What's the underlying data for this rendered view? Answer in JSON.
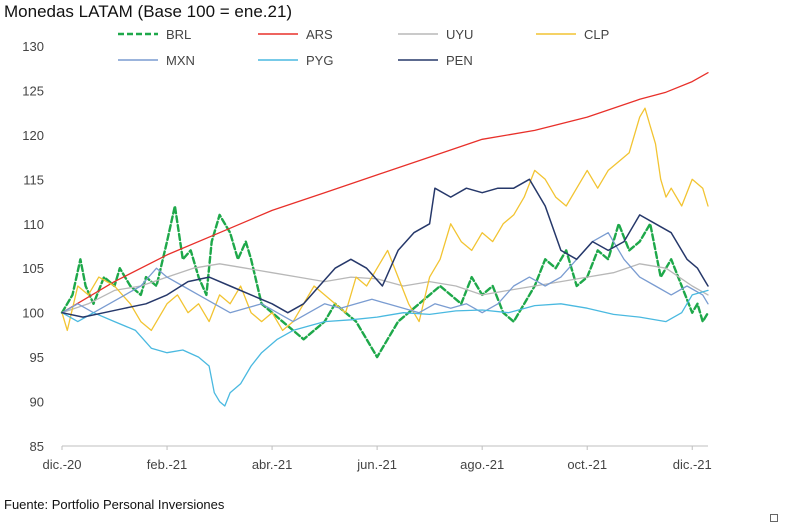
{
  "chart_data": {
    "type": "line",
    "title": "Monedas LATAM (Base 100 = ene.21)",
    "source": "Fuente: Portfolio Personal Inversiones",
    "xlabel": "",
    "ylabel": "",
    "ylim": [
      85,
      130
    ],
    "yticks": [
      85,
      90,
      95,
      100,
      105,
      110,
      115,
      120,
      125,
      130
    ],
    "xlim": [
      0,
      12.3
    ],
    "xticks": [
      {
        "pos": 0,
        "label": "dic.-20"
      },
      {
        "pos": 2,
        "label": "feb.-21"
      },
      {
        "pos": 4,
        "label": "abr.-21"
      },
      {
        "pos": 6,
        "label": "jun.-21"
      },
      {
        "pos": 8,
        "label": "ago.-21"
      },
      {
        "pos": 10,
        "label": "oct.-21"
      },
      {
        "pos": 12,
        "label": "dic.-21"
      }
    ],
    "legend_position": "top",
    "series": [
      {
        "name": "BRL",
        "color": "#1ea84a",
        "dash": true,
        "width": 2.4,
        "x": [
          0,
          0.2,
          0.35,
          0.45,
          0.6,
          0.8,
          1.0,
          1.1,
          1.3,
          1.5,
          1.6,
          1.8,
          2.0,
          2.15,
          2.3,
          2.45,
          2.6,
          2.75,
          2.85,
          3.0,
          3.2,
          3.35,
          3.5,
          3.6,
          3.8,
          4.0,
          4.2,
          4.4,
          4.6,
          4.8,
          5.0,
          5.2,
          5.4,
          5.6,
          5.8,
          6.0,
          6.2,
          6.4,
          6.6,
          6.8,
          7.0,
          7.2,
          7.4,
          7.6,
          7.8,
          8.0,
          8.2,
          8.4,
          8.6,
          8.8,
          9.0,
          9.2,
          9.4,
          9.6,
          9.8,
          10.0,
          10.2,
          10.4,
          10.6,
          10.8,
          11.0,
          11.2,
          11.4,
          11.6,
          11.8,
          12.0,
          12.1,
          12.2,
          12.3
        ],
        "y": [
          100,
          102,
          106,
          103,
          101,
          104,
          103,
          105,
          103,
          102,
          104,
          103,
          108,
          112,
          106,
          107,
          104,
          102,
          108,
          111,
          109,
          106,
          108,
          106,
          101,
          100,
          99,
          98,
          97,
          98,
          99,
          101,
          100,
          99,
          97,
          95,
          97,
          99,
          100,
          101,
          102,
          103,
          102,
          101,
          104,
          102,
          103,
          100,
          99,
          101,
          103,
          106,
          105,
          107,
          103,
          104,
          107,
          106,
          110,
          107,
          108,
          110,
          104,
          106,
          103,
          100,
          101,
          99,
          100
        ]
      },
      {
        "name": "ARS",
        "color": "#e8302a",
        "dash": false,
        "width": 1.3,
        "x": [
          0,
          1,
          2,
          3,
          4,
          5,
          6,
          7,
          8,
          9,
          10,
          11,
          11.5,
          12,
          12.3
        ],
        "y": [
          100,
          103.5,
          106.5,
          109,
          111.5,
          113.5,
          115.5,
          117.5,
          119.5,
          120.5,
          122,
          124,
          124.8,
          126,
          127
        ]
      },
      {
        "name": "UYU",
        "color": "#b8b8b8",
        "dash": false,
        "width": 1.3,
        "x": [
          0,
          0.5,
          1,
          1.5,
          2,
          2.5,
          3,
          3.5,
          4,
          4.5,
          5,
          5.5,
          6,
          6.5,
          7,
          7.5,
          8,
          8.5,
          9,
          9.5,
          10,
          10.5,
          11,
          11.5,
          12,
          12.3
        ],
        "y": [
          100,
          101,
          102.5,
          103,
          104,
          105,
          105.5,
          105,
          104.5,
          104,
          103.5,
          104,
          103.8,
          103,
          103.5,
          103,
          102,
          102.5,
          103,
          103.5,
          104,
          104.5,
          105.5,
          105,
          103,
          102
        ]
      },
      {
        "name": "CLP",
        "color": "#f2c432",
        "dash": false,
        "width": 1.3,
        "x": [
          0,
          0.1,
          0.3,
          0.5,
          0.7,
          1.0,
          1.3,
          1.5,
          1.7,
          2.0,
          2.2,
          2.4,
          2.6,
          2.8,
          3.0,
          3.2,
          3.4,
          3.6,
          3.8,
          4.0,
          4.2,
          4.4,
          4.6,
          4.8,
          5.0,
          5.2,
          5.4,
          5.6,
          5.8,
          6.0,
          6.2,
          6.4,
          6.6,
          6.8,
          7.0,
          7.2,
          7.4,
          7.6,
          7.8,
          8.0,
          8.2,
          8.4,
          8.6,
          8.8,
          9.0,
          9.2,
          9.4,
          9.6,
          9.8,
          10.0,
          10.2,
          10.4,
          10.6,
          10.8,
          11.0,
          11.1,
          11.2,
          11.3,
          11.4,
          11.5,
          11.6,
          11.8,
          12.0,
          12.2,
          12.3
        ],
        "y": [
          100,
          98,
          103,
          102,
          104,
          103,
          101,
          99,
          98,
          101,
          102,
          100,
          101,
          99,
          102,
          101,
          103,
          100,
          99,
          100,
          98,
          99,
          101,
          103,
          102,
          101,
          100,
          104,
          103,
          105,
          107,
          104,
          101,
          99,
          104,
          106,
          110,
          108,
          107,
          109,
          108,
          110,
          111,
          113,
          116,
          115,
          113,
          112,
          114,
          116,
          114,
          116,
          117,
          118,
          122,
          123,
          121,
          119,
          115,
          113,
          114,
          112,
          115,
          114,
          112
        ]
      },
      {
        "name": "MXN",
        "color": "#7a9cd1",
        "dash": false,
        "width": 1.3,
        "x": [
          0,
          0.3,
          0.6,
          0.9,
          1.2,
          1.5,
          1.8,
          2.0,
          2.3,
          2.6,
          2.9,
          3.2,
          3.5,
          3.8,
          4.1,
          4.4,
          4.7,
          5.0,
          5.3,
          5.6,
          5.9,
          6.2,
          6.5,
          6.8,
          7.1,
          7.4,
          7.7,
          8.0,
          8.3,
          8.6,
          8.9,
          9.2,
          9.5,
          9.8,
          10.1,
          10.4,
          10.7,
          11.0,
          11.3,
          11.6,
          11.9,
          12.2,
          12.3
        ],
        "y": [
          100,
          101,
          100,
          101,
          102,
          103,
          105,
          104,
          103,
          102,
          101,
          100,
          100.5,
          101,
          100,
          99,
          100,
          101,
          100.5,
          101,
          101.5,
          101,
          100.5,
          100,
          101,
          100.5,
          101,
          100,
          101,
          103,
          104,
          103,
          104,
          106,
          108,
          109,
          106,
          104,
          103,
          102,
          103,
          102,
          101
        ]
      },
      {
        "name": "PYG",
        "color": "#4ab9e0",
        "dash": false,
        "width": 1.3,
        "x": [
          0,
          0.3,
          0.6,
          1.0,
          1.4,
          1.7,
          2.0,
          2.3,
          2.6,
          2.8,
          2.9,
          3.0,
          3.1,
          3.2,
          3.4,
          3.6,
          3.8,
          4.1,
          4.4,
          4.7,
          5.0,
          5.5,
          6.0,
          6.5,
          7.0,
          7.5,
          8.0,
          8.5,
          9.0,
          9.5,
          10.0,
          10.5,
          11.0,
          11.5,
          11.8,
          12.0,
          12.3
        ],
        "y": [
          100,
          99,
          100,
          99,
          98,
          96,
          95.5,
          95.8,
          95,
          94,
          91,
          90,
          89.5,
          91,
          92,
          94,
          95.5,
          97,
          98,
          98.5,
          99,
          99.2,
          99.5,
          100,
          99.8,
          100.2,
          100.3,
          100,
          100.8,
          101,
          100.5,
          99.8,
          99.5,
          99,
          100,
          102,
          102.5
        ]
      },
      {
        "name": "PEN",
        "color": "#26386a",
        "dash": false,
        "width": 1.5,
        "x": [
          0,
          0.4,
          0.8,
          1.2,
          1.6,
          2.0,
          2.4,
          2.8,
          3.2,
          3.6,
          4.0,
          4.3,
          4.6,
          4.9,
          5.2,
          5.5,
          5.8,
          6.1,
          6.4,
          6.7,
          7.0,
          7.1,
          7.4,
          7.7,
          8.0,
          8.3,
          8.6,
          8.9,
          9.2,
          9.5,
          9.8,
          10.1,
          10.4,
          10.7,
          11.0,
          11.3,
          11.6,
          11.9,
          12.1,
          12.2,
          12.3
        ],
        "y": [
          100,
          99.5,
          100,
          100.5,
          101,
          102,
          103.5,
          104,
          103,
          102,
          101,
          100,
          101,
          103,
          105,
          106,
          105,
          103,
          107,
          109,
          110,
          114,
          113,
          114,
          113.5,
          114,
          114,
          115,
          112,
          107,
          106,
          108,
          107,
          108,
          111,
          110,
          109,
          106,
          105,
          104,
          103
        ]
      }
    ]
  }
}
